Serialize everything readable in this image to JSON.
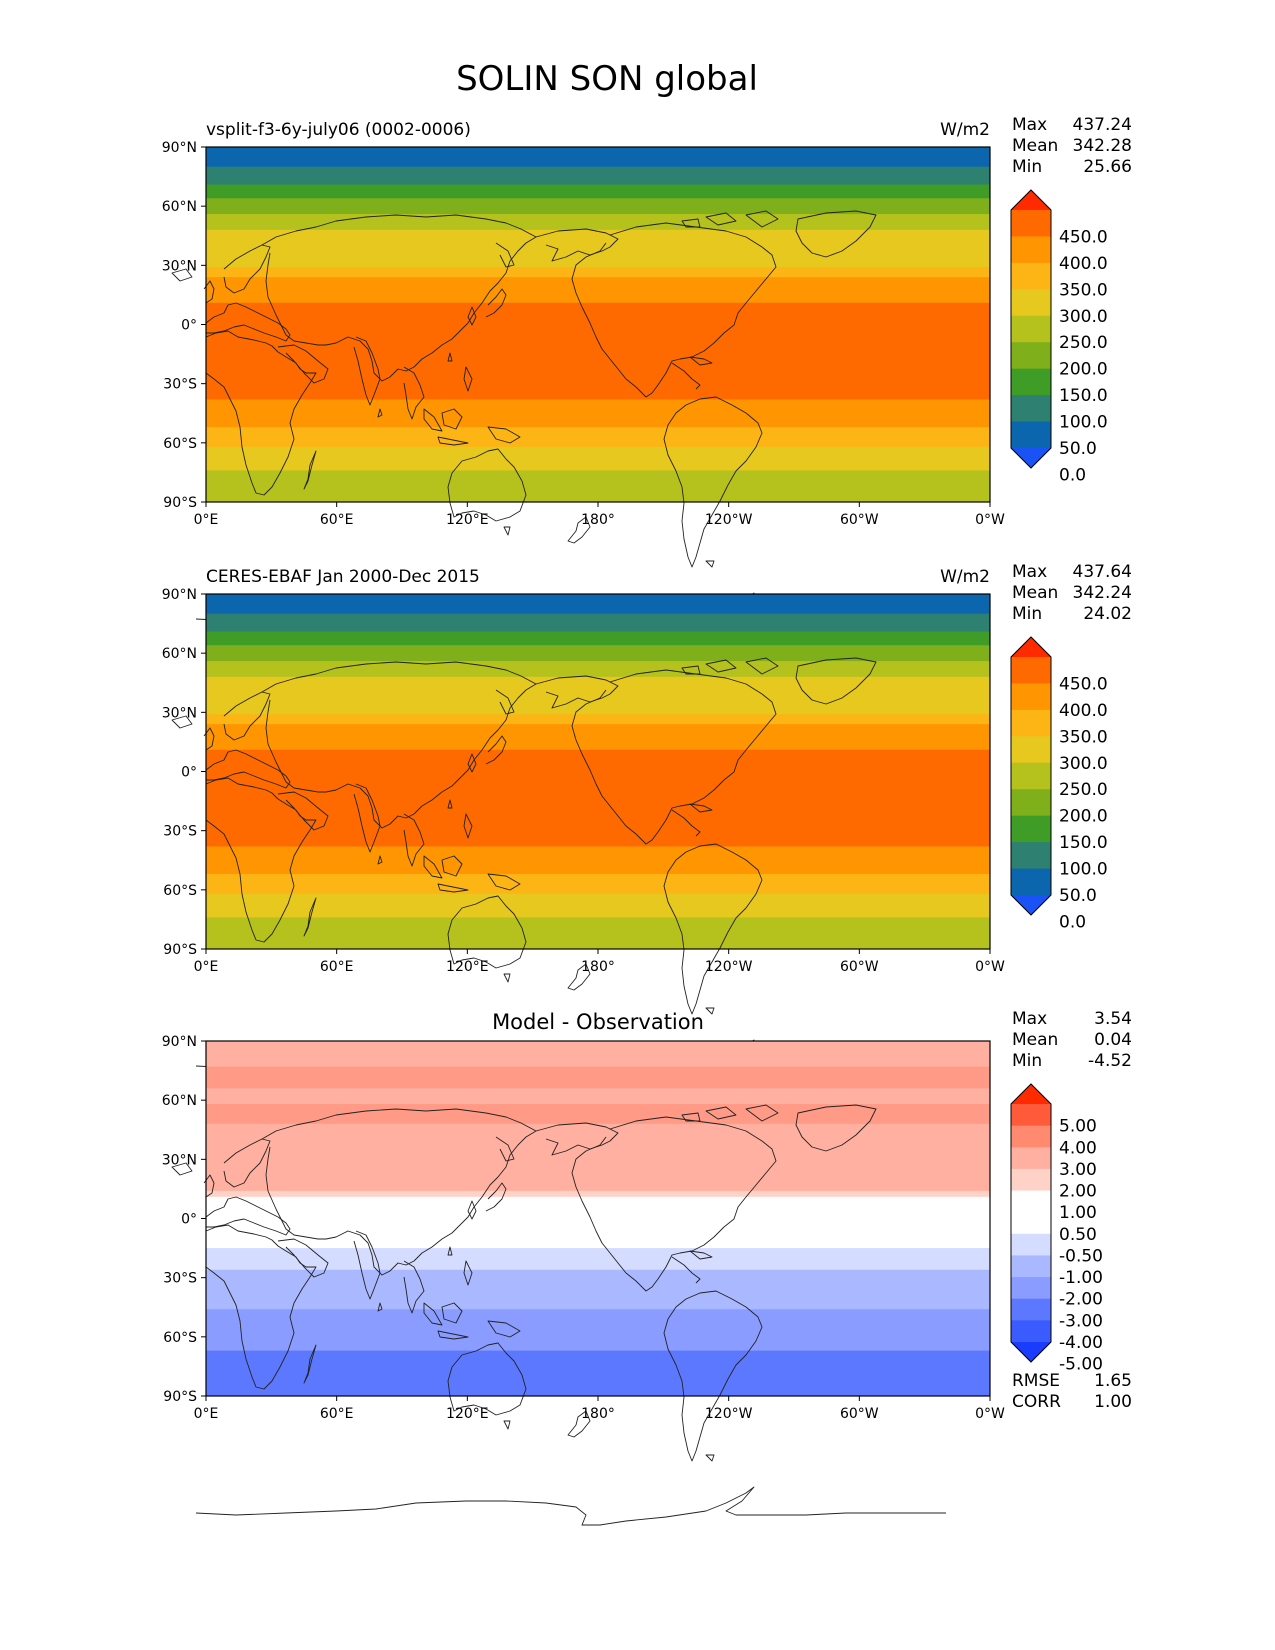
{
  "figure": {
    "title": "SOLIN SON global"
  },
  "axes": {
    "lat_ticks": [
      "90°N",
      "60°N",
      "30°N",
      "0°",
      "30°S",
      "60°S",
      "90°S"
    ],
    "lon_ticks": [
      "0°E",
      "60°E",
      "120°E",
      "180°",
      "120°W",
      "60°W",
      "0°W"
    ],
    "lat_range": [
      -90,
      90
    ],
    "lon_range": [
      0,
      360
    ]
  },
  "panels": [
    {
      "id": "model",
      "left_title": "vsplit-f3-6y-july06 (0002-0006)",
      "center_title": "",
      "units": "W/m2",
      "stats": [
        {
          "label": "Max",
          "value": "437.24"
        },
        {
          "label": "Mean",
          "value": "342.28"
        },
        {
          "label": "Min",
          "value": "25.66"
        }
      ],
      "colorbar": {
        "labels": [
          "450.0",
          "400.0",
          "350.0",
          "300.0",
          "250.0",
          "200.0",
          "150.0",
          "100.0",
          "50.0",
          "0.0"
        ],
        "colors": [
          "#ff2a00",
          "#ff6a00",
          "#ff9500",
          "#fdb515",
          "#e6c81e",
          "#b5c11c",
          "#7fb01c",
          "#3e9c27",
          "#2e8070",
          "#0b66ad",
          "#1a53f5"
        ]
      },
      "bands": [
        {
          "from": 90,
          "to": 80,
          "color": "#0b66ad"
        },
        {
          "from": 80,
          "to": 71,
          "color": "#2e8070"
        },
        {
          "from": 71,
          "to": 64,
          "color": "#3e9c27"
        },
        {
          "from": 64,
          "to": 56,
          "color": "#7fb01c"
        },
        {
          "from": 56,
          "to": 48,
          "color": "#b5c11c"
        },
        {
          "from": 48,
          "to": 29,
          "color": "#e6c81e"
        },
        {
          "from": 29,
          "to": 24,
          "color": "#fdb515"
        },
        {
          "from": 24,
          "to": 11,
          "color": "#ff9500"
        },
        {
          "from": 11,
          "to": -38,
          "color": "#ff6a00"
        },
        {
          "from": -38,
          "to": -52,
          "color": "#ff9500"
        },
        {
          "from": -52,
          "to": -62,
          "color": "#fdb515"
        },
        {
          "from": -62,
          "to": -74,
          "color": "#e6c81e"
        },
        {
          "from": -74,
          "to": -90,
          "color": "#b5c11c"
        }
      ]
    },
    {
      "id": "obs",
      "left_title": "CERES-EBAF Jan 2000-Dec 2015",
      "center_title": "",
      "units": "W/m2",
      "stats": [
        {
          "label": "Max",
          "value": "437.64"
        },
        {
          "label": "Mean",
          "value": "342.24"
        },
        {
          "label": "Min",
          "value": "24.02"
        }
      ],
      "colorbar": {
        "labels": [
          "450.0",
          "400.0",
          "350.0",
          "300.0",
          "250.0",
          "200.0",
          "150.0",
          "100.0",
          "50.0",
          "0.0"
        ],
        "colors": [
          "#ff2a00",
          "#ff6a00",
          "#ff9500",
          "#fdb515",
          "#e6c81e",
          "#b5c11c",
          "#7fb01c",
          "#3e9c27",
          "#2e8070",
          "#0b66ad",
          "#1a53f5"
        ]
      },
      "bands": [
        {
          "from": 90,
          "to": 80,
          "color": "#0b66ad"
        },
        {
          "from": 80,
          "to": 71,
          "color": "#2e8070"
        },
        {
          "from": 71,
          "to": 64,
          "color": "#3e9c27"
        },
        {
          "from": 64,
          "to": 56,
          "color": "#7fb01c"
        },
        {
          "from": 56,
          "to": 48,
          "color": "#b5c11c"
        },
        {
          "from": 48,
          "to": 29,
          "color": "#e6c81e"
        },
        {
          "from": 29,
          "to": 24,
          "color": "#fdb515"
        },
        {
          "from": 24,
          "to": 11,
          "color": "#ff9500"
        },
        {
          "from": 11,
          "to": -38,
          "color": "#ff6a00"
        },
        {
          "from": -38,
          "to": -52,
          "color": "#ff9500"
        },
        {
          "from": -52,
          "to": -62,
          "color": "#fdb515"
        },
        {
          "from": -62,
          "to": -74,
          "color": "#e6c81e"
        },
        {
          "from": -74,
          "to": -90,
          "color": "#b5c11c"
        }
      ]
    },
    {
      "id": "diff",
      "left_title": "",
      "center_title": "Model - Observation",
      "units": "",
      "stats": [
        {
          "label": "Max",
          "value": "3.54"
        },
        {
          "label": "Mean",
          "value": "0.04"
        },
        {
          "label": "Min",
          "value": "-4.52"
        }
      ],
      "colorbar": {
        "labels": [
          "5.00",
          "4.00",
          "3.00",
          "2.00",
          "1.00",
          "0.50",
          "-0.50",
          "-1.00",
          "-2.00",
          "-3.00",
          "-4.00",
          "-5.00"
        ],
        "colors": [
          "#ff2a00",
          "#ff5a3a",
          "#ff8a70",
          "#ffb0a0",
          "#ffd2c8",
          "#ffffff",
          "#ffffff",
          "#d4dcff",
          "#aab8ff",
          "#8a9cff",
          "#5c78ff",
          "#3a5cff",
          "#1a3cff"
        ]
      },
      "bands": [
        {
          "from": 90,
          "to": 77,
          "color": "#ffb0a0"
        },
        {
          "from": 77,
          "to": 66,
          "color": "#ff9a86"
        },
        {
          "from": 66,
          "to": 58,
          "color": "#ffb0a0"
        },
        {
          "from": 58,
          "to": 48,
          "color": "#ff9a86"
        },
        {
          "from": 48,
          "to": 14,
          "color": "#ffb0a0"
        },
        {
          "from": 14,
          "to": 11,
          "color": "#ffd2c8"
        },
        {
          "from": 11,
          "to": -15,
          "color": "#ffffff"
        },
        {
          "from": -15,
          "to": -26,
          "color": "#d4dcff"
        },
        {
          "from": -26,
          "to": -46,
          "color": "#aab8ff"
        },
        {
          "from": -46,
          "to": -67,
          "color": "#8a9cff"
        },
        {
          "from": -67,
          "to": -90,
          "color": "#5c78ff"
        }
      ],
      "extra_stats": [
        {
          "label": "RMSE",
          "value": "1.65"
        },
        {
          "label": "CORR",
          "value": "1.00"
        }
      ]
    }
  ]
}
